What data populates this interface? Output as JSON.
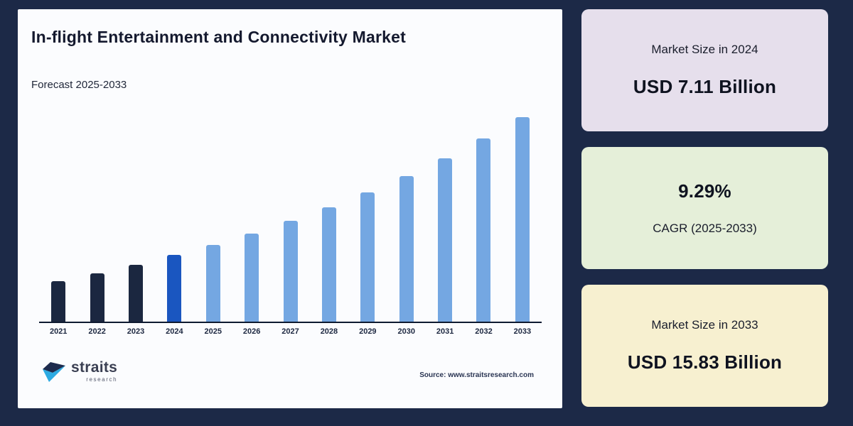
{
  "page": {
    "background_color": "#1c2947",
    "card_background_color": "#fbfcfe"
  },
  "header": {
    "title": "In-flight Entertainment and Connectivity Market",
    "subtitle": "Forecast 2025-2033"
  },
  "chart_data": {
    "type": "bar",
    "title": "In-flight Entertainment and Connectivity Market",
    "subtitle": "Forecast 2025-2033",
    "unit": "USD Billion",
    "categories": [
      "2021",
      "2022",
      "2023",
      "2024",
      "2025",
      "2026",
      "2027",
      "2028",
      "2029",
      "2030",
      "2031",
      "2032",
      "2033"
    ],
    "values": [
      5.45,
      5.95,
      6.5,
      7.11,
      7.77,
      8.49,
      9.28,
      10.15,
      11.09,
      12.12,
      13.25,
      14.48,
      15.83
    ],
    "labeled_values": {
      "2024": 7.11,
      "2033": 15.83
    },
    "cagr_percent": 9.29,
    "cagr_period": "2025-2033",
    "xlabel": "",
    "ylabel": "",
    "ylim": [
      2.9,
      15.83
    ],
    "grid": false,
    "legend": false,
    "bar_colors": {
      "historical": "#1b2740",
      "base_year": "#1a56c0",
      "forecast": "#74a7e2"
    },
    "color_roles": [
      "historical",
      "historical",
      "historical",
      "base_year",
      "forecast",
      "forecast",
      "forecast",
      "forecast",
      "forecast",
      "forecast",
      "forecast",
      "forecast",
      "forecast"
    ],
    "axis_color": "#0e1a30"
  },
  "panels": [
    {
      "label": "Market Size in 2024",
      "value": "USD 7.11 Billion",
      "background": "#e6dfec"
    },
    {
      "value": "9.29%",
      "label": "CAGR (2025-2033)",
      "background": "#e5efd9"
    },
    {
      "label": "Market Size in 2033",
      "value": "USD 15.83 Billion",
      "background": "#f7f0d0"
    }
  ],
  "footer": {
    "logo_name": "straits",
    "logo_subtext": "research",
    "source": "Source: www.straitsresearch.com"
  },
  "icons": {
    "logo_mark": "straits-arrow-logo",
    "logo_mark_colors": {
      "dark": "#1d2b4d",
      "cyan": "#2caae2"
    }
  }
}
